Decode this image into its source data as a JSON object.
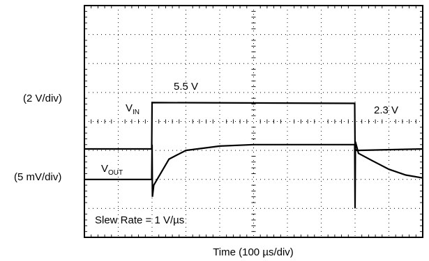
{
  "chart_data": {
    "type": "line",
    "xlabel": "Time (100 µs/div)",
    "x_unit": "µs",
    "xlim": [
      0,
      1000
    ],
    "grid": true,
    "channels": [
      {
        "scale_label": "(2 V/div)",
        "name_main": "V",
        "name_sub": "IN",
        "level_labels": [
          "5.5 V",
          "2.3 V"
        ],
        "levels_v": [
          2.3,
          5.5
        ],
        "rise_time_us": 200,
        "fall_time_us": 800,
        "x": [
          0,
          199,
          200,
          201,
          799,
          800,
          805,
          1000
        ],
        "y": [
          2.3,
          2.3,
          5.5,
          5.5,
          5.45,
          2.3,
          2.2,
          2.3
        ]
      },
      {
        "scale_label": "(5 mV/div)",
        "name_main": "V",
        "name_sub": "OUT",
        "annotation": "Slew Rate = 1 V/µs",
        "offset_mv_divs": [
          [
            0,
            0
          ],
          [
            199,
            0
          ],
          [
            200,
            1.2
          ],
          [
            201,
            -0.6
          ],
          [
            205,
            -0.2
          ],
          [
            250,
            0.7
          ],
          [
            300,
            1.0
          ],
          [
            400,
            1.15
          ],
          [
            500,
            1.2
          ],
          [
            600,
            1.2
          ],
          [
            780,
            1.2
          ],
          [
            799,
            1.2
          ],
          [
            800,
            -1.0
          ],
          [
            801,
            1.3
          ],
          [
            810,
            0.9
          ],
          [
            850,
            0.65
          ],
          [
            900,
            0.35
          ],
          [
            950,
            0.15
          ],
          [
            1000,
            0.05
          ]
        ]
      }
    ]
  }
}
